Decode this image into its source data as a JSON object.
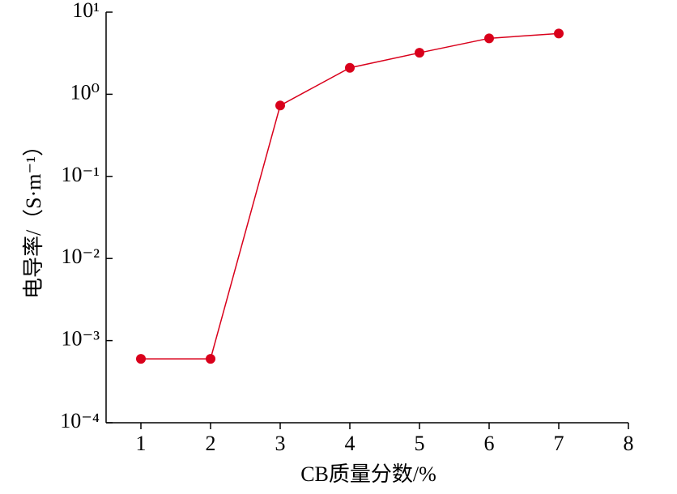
{
  "chart_data": {
    "type": "line",
    "x_label": "CB质量分数/%",
    "y_label": "电导率/（S·m⁻¹）",
    "x": [
      1,
      2,
      3,
      4,
      5,
      6,
      7
    ],
    "series": [
      {
        "color": "#d9001b",
        "values": [
          0.0006,
          0.0006,
          0.73,
          2.1,
          3.2,
          4.8,
          5.5
        ]
      }
    ],
    "xlim": [
      0.5,
      8
    ],
    "xticks": [
      1,
      2,
      3,
      4,
      5,
      6,
      7,
      8
    ],
    "ylim": [
      0.0001,
      10
    ],
    "yscale": "log",
    "yticks": [
      {
        "value": 0.0001,
        "label": "10⁻⁴"
      },
      {
        "value": 0.001,
        "label": "10⁻³"
      },
      {
        "value": 0.01,
        "label": "10⁻²"
      },
      {
        "value": 0.1,
        "label": "10⁻¹"
      },
      {
        "value": 1,
        "label": "10⁰"
      },
      {
        "value": 10,
        "label": "10¹"
      }
    ],
    "grid": false
  }
}
